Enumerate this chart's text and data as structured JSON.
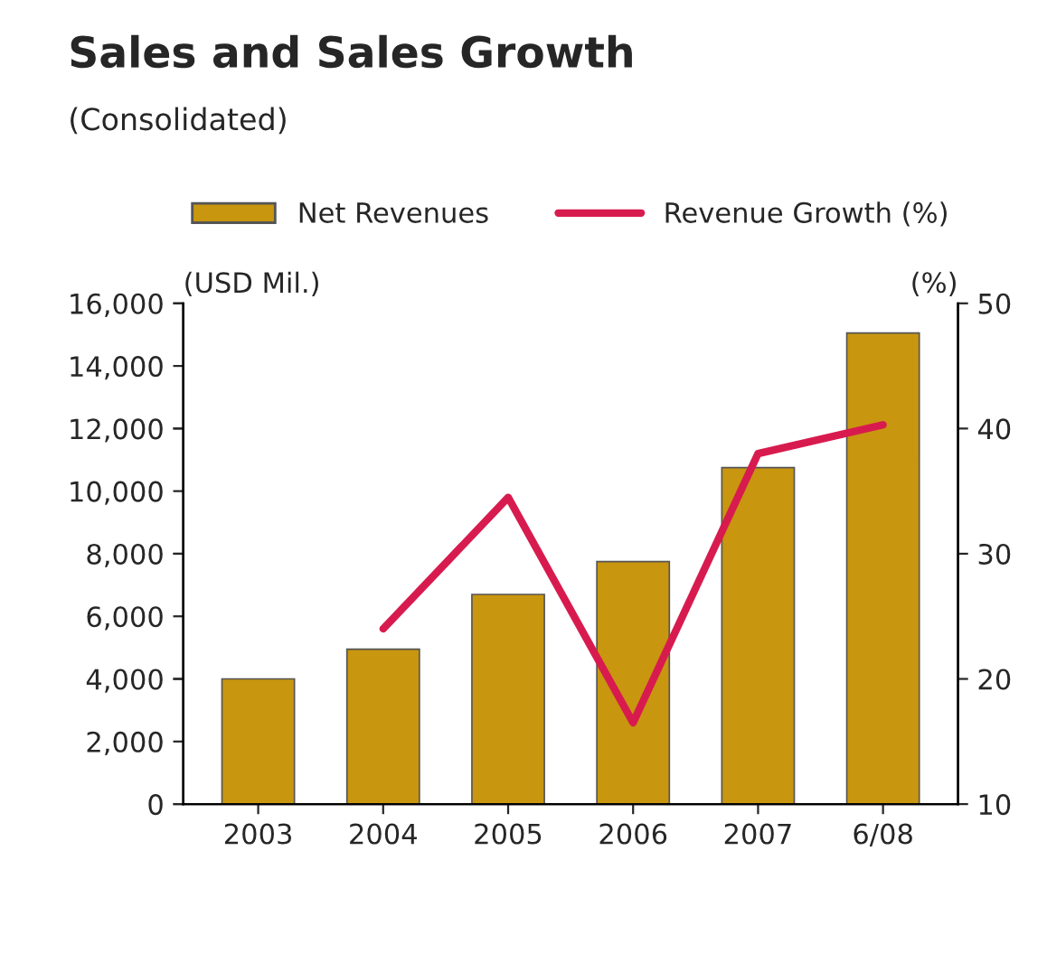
{
  "chart_data": {
    "type": "bar",
    "title": "Sales and Sales Growth",
    "subtitle": "(Consolidated)",
    "ylabel": "(USD Mil.)",
    "y2label": "(%)",
    "categories": [
      "2003",
      "2004",
      "2005",
      "2006",
      "2007",
      "6/08"
    ],
    "series": [
      {
        "name": "Net Revenues",
        "color": "#c8960f",
        "values": [
          4000,
          4950,
          6700,
          7750,
          10750,
          15050
        ]
      },
      {
        "name": "Revenue Growth (%)",
        "type": "line",
        "axis": "y2",
        "color": "#d81b4f",
        "values": [
          null,
          24,
          34.5,
          16.5,
          38,
          40.3
        ]
      }
    ],
    "ylim": [
      0,
      16000
    ],
    "yticks": [
      {
        "value": 0,
        "label": "0"
      },
      {
        "value": 2000,
        "label": "2,000"
      },
      {
        "value": 4000,
        "label": "4,000"
      },
      {
        "value": 6000,
        "label": "6,000"
      },
      {
        "value": 8000,
        "label": "8,000"
      },
      {
        "value": 10000,
        "label": "10,000"
      },
      {
        "value": 12000,
        "label": "12,000"
      },
      {
        "value": 14000,
        "label": "14,000"
      },
      {
        "value": 16000,
        "label": "16,000"
      }
    ],
    "y2lim": [
      10,
      50
    ],
    "y2ticks": [
      10,
      20,
      30,
      40,
      50
    ],
    "legend": "top",
    "grid": false,
    "marker": "none",
    "line_style": "solid"
  }
}
